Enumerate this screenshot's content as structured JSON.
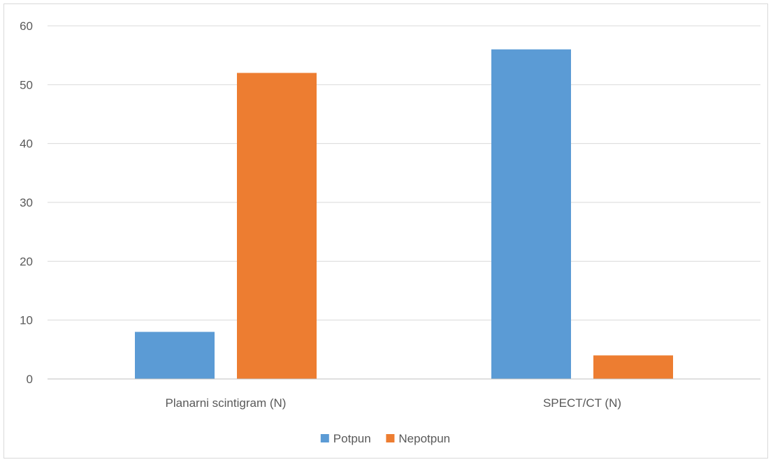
{
  "chart_data": {
    "type": "bar",
    "categories": [
      "Planarni scintigram (N)",
      "SPECT/CT (N)"
    ],
    "series": [
      {
        "name": "Potpun",
        "values": [
          8,
          56
        ],
        "color": "#5B9BD5"
      },
      {
        "name": "Nepotpun",
        "values": [
          52,
          4
        ],
        "color": "#ED7D31"
      }
    ],
    "ylim": [
      0,
      60
    ],
    "yticks": [
      0,
      10,
      20,
      30,
      40,
      50,
      60
    ],
    "grid": true,
    "legend_position": "bottom",
    "gridline_color": "#d9d9d9",
    "axis_color": "#bfbfbf"
  }
}
